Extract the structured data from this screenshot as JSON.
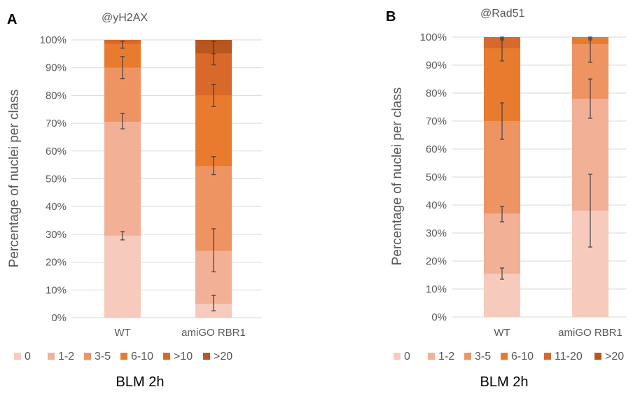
{
  "chart_data": [
    {
      "type": "bar",
      "panel_label": "A",
      "title": "@yH2AX",
      "ylabel": "Percentage of nuclei per class",
      "xlabel": "BLM 2h",
      "ylim": [
        0,
        100
      ],
      "yticks": [
        "0%",
        "10%",
        "20%",
        "30%",
        "40%",
        "50%",
        "60%",
        "70%",
        "80%",
        "90%",
        "100%"
      ],
      "categories": [
        "WT",
        "amiGO RBR1"
      ],
      "stacked": true,
      "legend_position": "bottom",
      "series": [
        {
          "name": "0",
          "color": "#f6cbbd",
          "values": [
            29.5,
            5.0
          ]
        },
        {
          "name": "1-2",
          "color": "#f2b096",
          "values": [
            41.0,
            19.0
          ]
        },
        {
          "name": "3-5",
          "color": "#ee9463",
          "values": [
            19.5,
            30.5
          ]
        },
        {
          "name": "6-10",
          "color": "#e97b2f",
          "values": [
            8.5,
            25.5
          ]
        },
        {
          "name": ">10",
          "color": "#d8692a",
          "values": [
            1.5,
            15.0
          ]
        },
        {
          "name": ">20",
          "color": "#b8561f",
          "values": [
            0.0,
            5.0
          ]
        }
      ],
      "error_bars": [
        [
          {
            "value": 29.5,
            "low": 28.0,
            "high": 31.0
          },
          {
            "value": 70.5,
            "low": 68.0,
            "high": 73.5
          },
          {
            "value": 90.0,
            "low": 86.0,
            "high": 94.0
          },
          {
            "value": 98.5,
            "low": 97.0,
            "high": 99.5
          }
        ],
        [
          {
            "value": 5.0,
            "low": 2.5,
            "high": 8.0
          },
          {
            "value": 24.0,
            "low": 16.5,
            "high": 32.0
          },
          {
            "value": 54.5,
            "low": 51.5,
            "high": 58.0
          },
          {
            "value": 80.0,
            "low": 76.0,
            "high": 84.0
          },
          {
            "value": 95.0,
            "low": 91.0,
            "high": 99.5
          },
          {
            "value": 97.5,
            "low": 95.0,
            "high": 99.5
          }
        ]
      ]
    },
    {
      "type": "bar",
      "panel_label": "B",
      "title": "@Rad51",
      "ylabel": "Percentage of nuclei per class",
      "xlabel": "BLM 2h",
      "ylim": [
        0,
        100
      ],
      "yticks": [
        "0%",
        "10%",
        "20%",
        "30%",
        "40%",
        "50%",
        "60%",
        "70%",
        "80%",
        "90%",
        "100%"
      ],
      "categories": [
        "WT",
        "amiGO RBR1"
      ],
      "stacked": true,
      "legend_position": "bottom",
      "series": [
        {
          "name": "0",
          "color": "#f6cbbd",
          "values": [
            15.5,
            38.0
          ]
        },
        {
          "name": "1-2",
          "color": "#f2b096",
          "values": [
            21.5,
            40.0
          ]
        },
        {
          "name": "3-5",
          "color": "#ee9463",
          "values": [
            33.0,
            19.5
          ]
        },
        {
          "name": "6-10",
          "color": "#e97b2f",
          "values": [
            26.0,
            2.5
          ]
        },
        {
          "name": "11-20",
          "color": "#d8692a",
          "values": [
            4.0,
            0.0
          ]
        },
        {
          "name": ">20",
          "color": "#b8561f",
          "values": [
            0.0,
            0.0
          ]
        }
      ],
      "error_bars": [
        [
          {
            "value": 15.5,
            "low": 13.5,
            "high": 17.5
          },
          {
            "value": 37.0,
            "low": 34.0,
            "high": 39.5
          },
          {
            "value": 70.0,
            "low": 63.5,
            "high": 76.5
          },
          {
            "value": 96.0,
            "low": 91.5,
            "high": 99.5
          },
          {
            "value": 99.5,
            "low": 99.0,
            "high": 100.0
          }
        ],
        [
          {
            "value": 38.0,
            "low": 25.0,
            "high": 51.0
          },
          {
            "value": 78.0,
            "low": 71.0,
            "high": 85.0
          },
          {
            "value": 97.5,
            "low": 91.0,
            "high": 99.5
          },
          {
            "value": 99.5,
            "low": 99.0,
            "high": 100.0
          }
        ]
      ]
    }
  ]
}
